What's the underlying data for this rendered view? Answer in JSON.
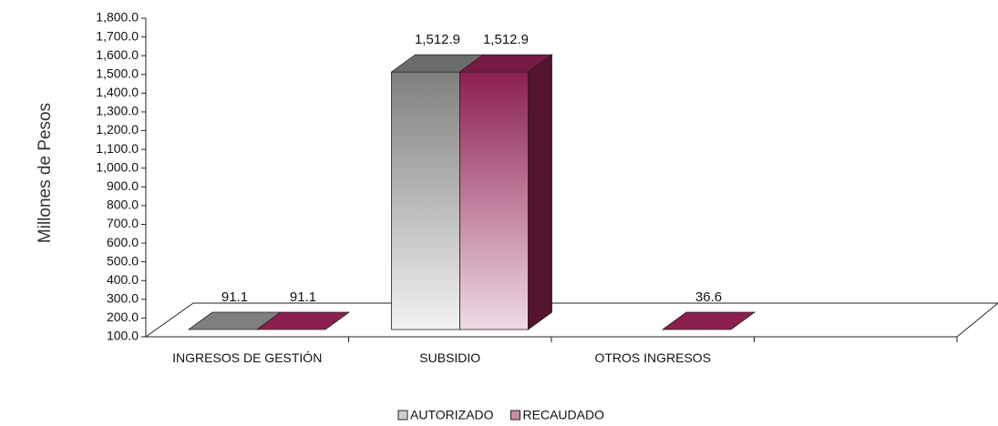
{
  "chart_data": {
    "type": "bar3d",
    "y_label": "Millones de Pesos",
    "categories": [
      "INGRESOS DE GESTIÓN",
      "SUBSIDIO",
      "OTROS INGRESOS",
      null
    ],
    "series": [
      {
        "name": "AUTORIZADO",
        "color": "#7f7f7f",
        "values": [
          91.1,
          1512.9,
          null,
          null
        ],
        "value_labels": [
          "91.1",
          "1,512.9",
          null,
          null
        ]
      },
      {
        "name": "RECAUDADO",
        "color": "#8c1f4f",
        "values": [
          91.1,
          1512.9,
          36.6,
          null
        ],
        "value_labels": [
          "91.1",
          "1,512.9",
          "36.6",
          null
        ]
      }
    ],
    "ylim": [
      100,
      1800
    ],
    "yticks": [
      {
        "value": 100,
        "label": "100.0"
      },
      {
        "value": 200,
        "label": "200.0"
      },
      {
        "value": 300,
        "label": "300.0"
      },
      {
        "value": 400,
        "label": "400.0"
      },
      {
        "value": 500,
        "label": "500.0"
      },
      {
        "value": 600,
        "label": "600.0"
      },
      {
        "value": 700,
        "label": "700.0"
      },
      {
        "value": 800,
        "label": "800.0"
      },
      {
        "value": 900,
        "label": "900.0"
      },
      {
        "value": 1000,
        "label": "1,000.0"
      },
      {
        "value": 1100,
        "label": "1,100.0"
      },
      {
        "value": 1200,
        "label": "1,200.0"
      },
      {
        "value": 1300,
        "label": "1,300.0"
      },
      {
        "value": 1400,
        "label": "1,400.0"
      },
      {
        "value": 1500,
        "label": "1,500.0"
      },
      {
        "value": 1600,
        "label": "1,600.0"
      },
      {
        "value": 1700,
        "label": "1,700.0"
      },
      {
        "value": 1800,
        "label": "1,800.0"
      }
    ],
    "legend": "bottom"
  }
}
